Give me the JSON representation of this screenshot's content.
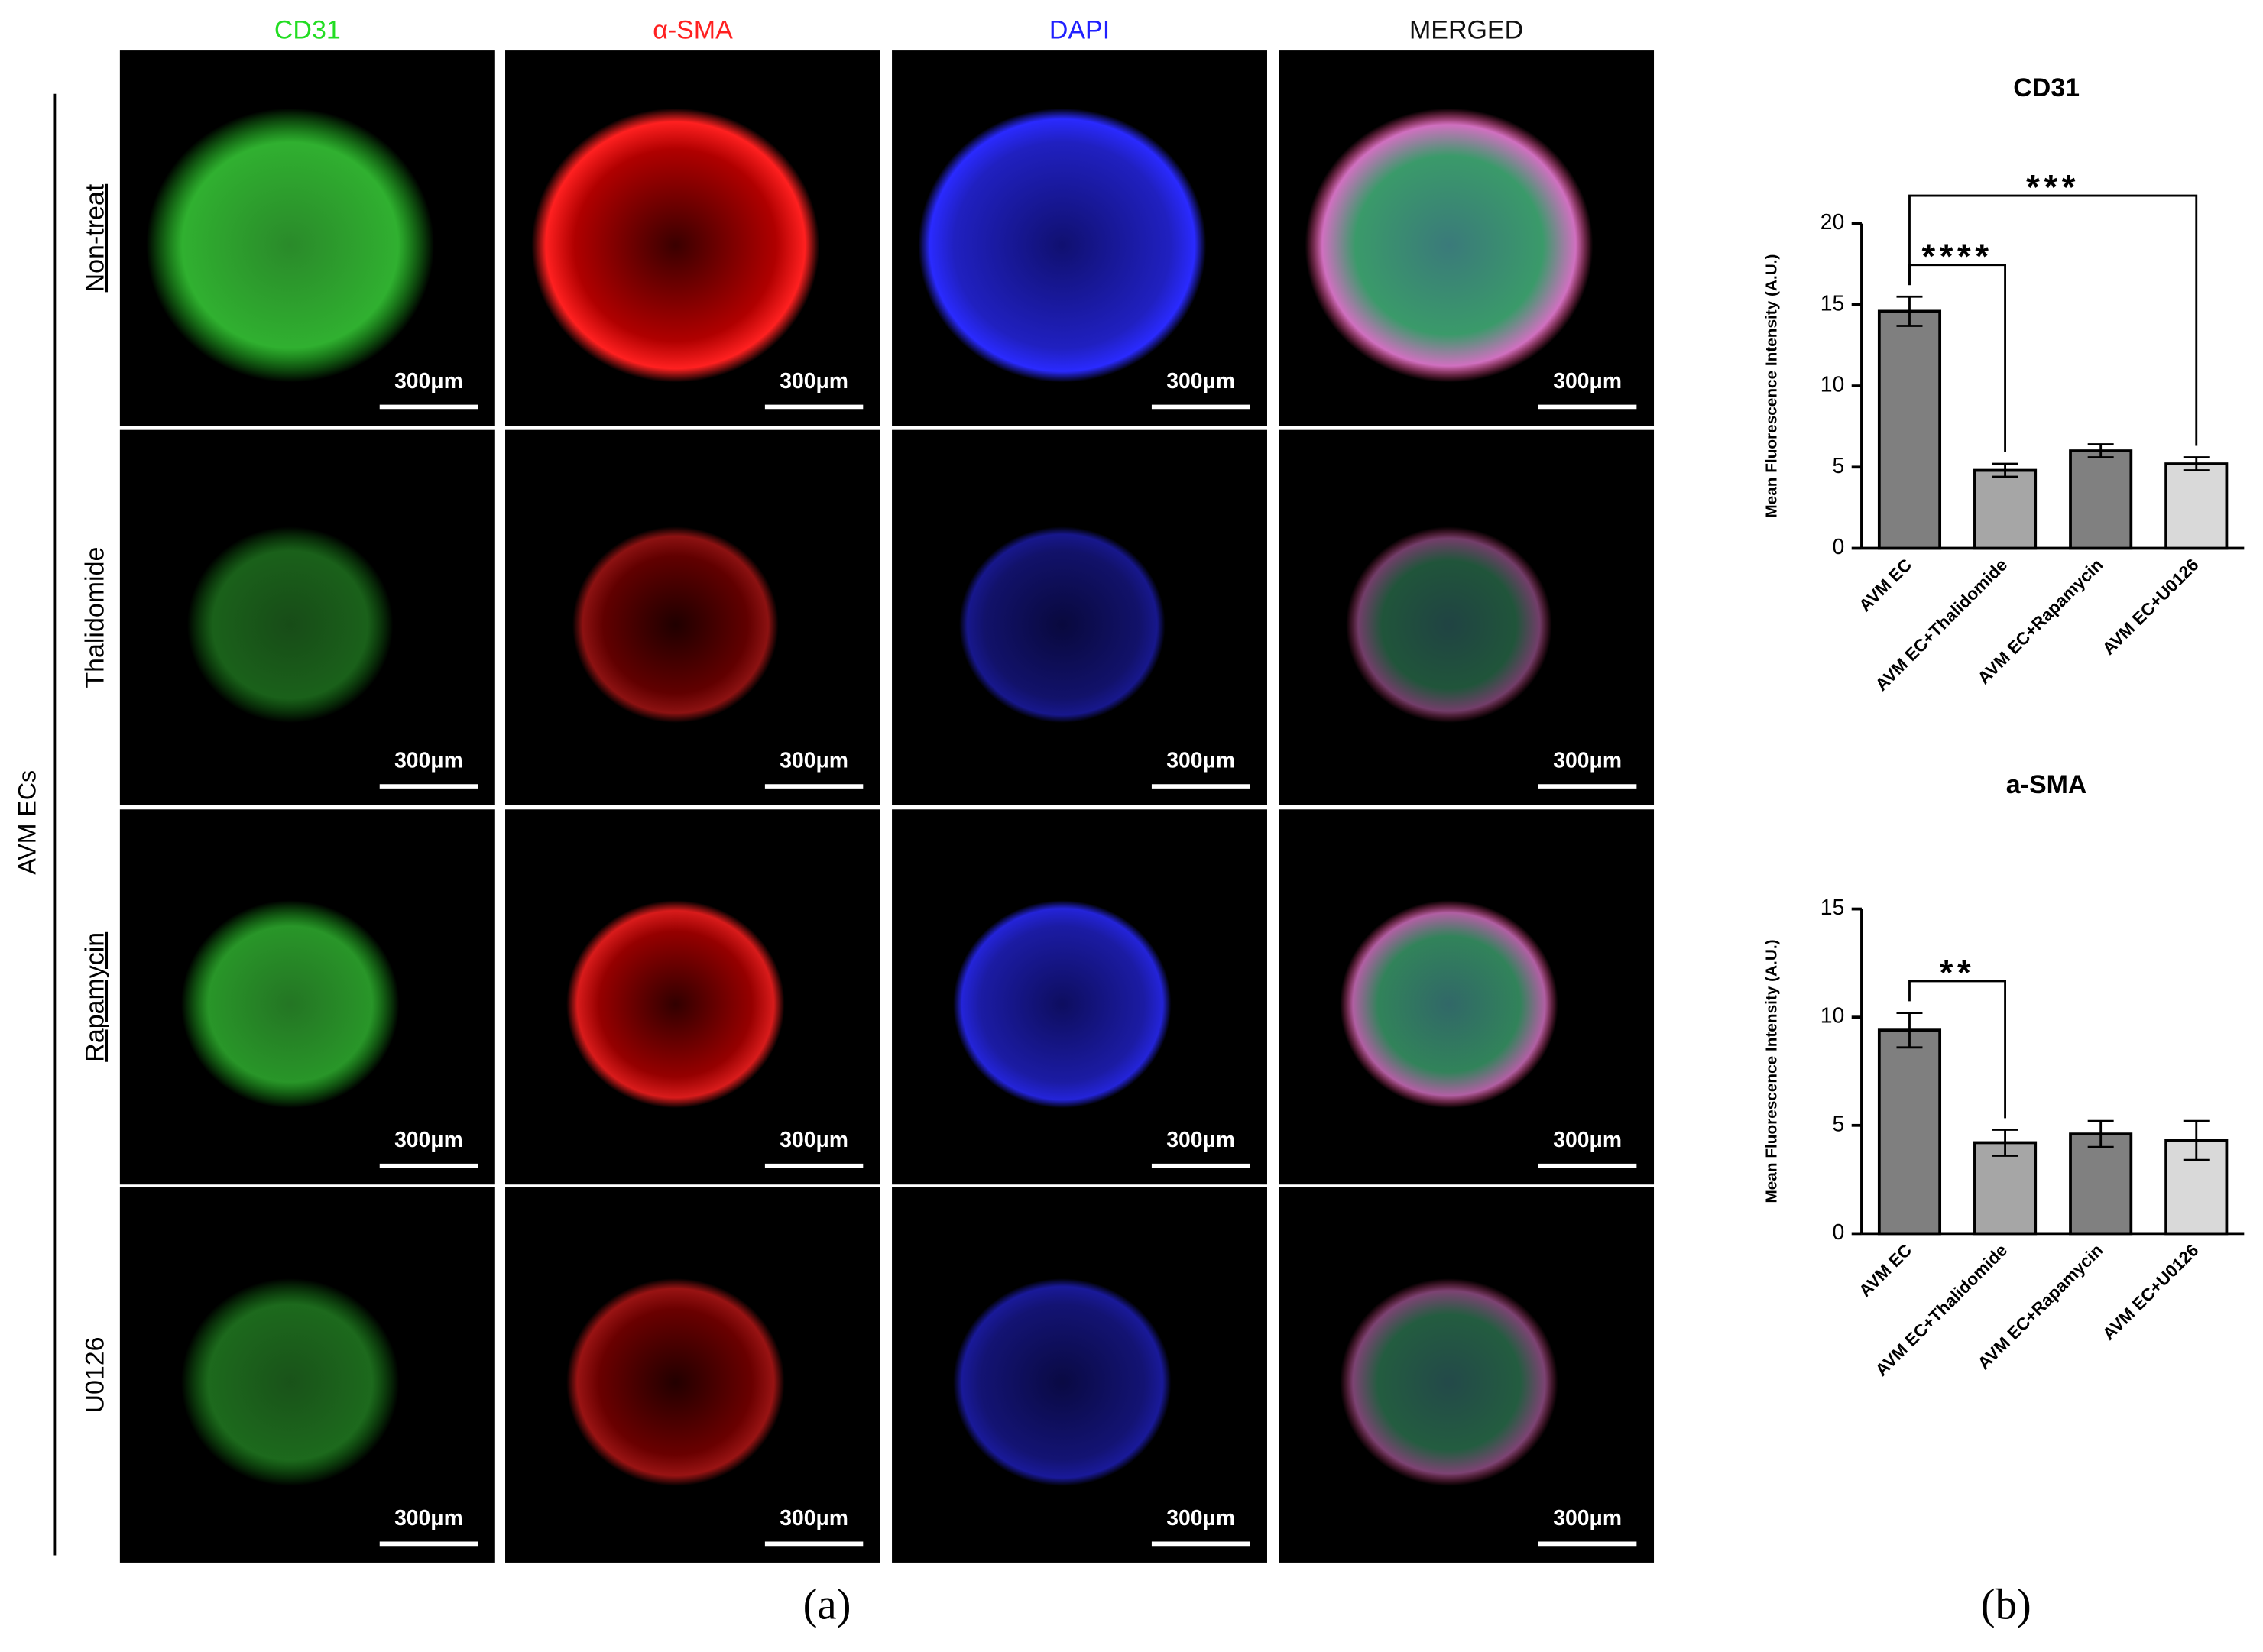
{
  "panel_a": {
    "group_label": "AVM ECs",
    "columns": [
      {
        "label": "CD31",
        "color": "#22dd22"
      },
      {
        "label": "α-SMA",
        "color": "#ff2020"
      },
      {
        "label": "DAPI",
        "color": "#2020ff"
      },
      {
        "label": "MERGED",
        "color": "#111111"
      }
    ],
    "rows": [
      {
        "label": "Non-treat",
        "underline": true
      },
      {
        "label": "Thalidomide",
        "underline": false
      },
      {
        "label": "Rapamycin",
        "underline": true
      },
      {
        "label": "U0126",
        "underline": false
      }
    ],
    "scale_bar": "300μm",
    "caption": "(a)"
  },
  "panel_b": {
    "caption": "(b)"
  },
  "chart_data": [
    {
      "type": "bar",
      "title": "CD31",
      "y_label": "Mean Fluorescence Intensity (A.U.)",
      "categories": [
        "AVM EC",
        "AVM EC+Thalidomide",
        "AVM EC+Rapamycin",
        "AVM EC+U0126"
      ],
      "values": [
        14.6,
        4.8,
        6.0,
        5.2
      ],
      "errors": [
        0.9,
        0.4,
        0.4,
        0.4
      ],
      "colors": [
        "#7f7f7f",
        "#a6a6a6",
        "#808080",
        "#d9d9d9"
      ],
      "ylim": [
        0,
        20
      ],
      "yticks": [
        0,
        5,
        10,
        15,
        20
      ],
      "comparisons": [
        {
          "text": "****",
          "from": "AVM EC",
          "to": "AVM EC+Thalidomide"
        },
        {
          "text": "***",
          "from": "AVM EC",
          "to": "AVM EC+U0126"
        }
      ]
    },
    {
      "type": "bar",
      "title": "a-SMA",
      "y_label": "Mean Fluorescence Intensity (A.U.)",
      "categories": [
        "AVM EC",
        "AVM EC+Thalidomide",
        "AVM EC+Rapamycin",
        "AVM EC+U0126"
      ],
      "values": [
        9.4,
        4.2,
        4.6,
        4.3
      ],
      "errors": [
        0.8,
        0.6,
        0.6,
        0.9
      ],
      "colors": [
        "#7f7f7f",
        "#a6a6a6",
        "#808080",
        "#d9d9d9"
      ],
      "ylim": [
        0,
        15
      ],
      "yticks": [
        0,
        5,
        10,
        15
      ],
      "comparisons": [
        {
          "text": "**",
          "from": "AVM EC",
          "to": "AVM EC+Thalidomide"
        }
      ]
    }
  ]
}
